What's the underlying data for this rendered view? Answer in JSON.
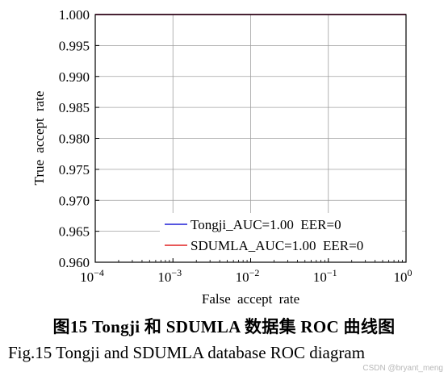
{
  "chart_data": {
    "type": "line",
    "xlabel": "False accept rate",
    "ylabel": "True accept rate",
    "xscale": "log",
    "xlim": [
      0.0001,
      1
    ],
    "ylim": [
      0.96,
      1.0
    ],
    "x_ticks": [
      {
        "base": "10",
        "exp": "−4"
      },
      {
        "base": "10",
        "exp": "−3"
      },
      {
        "base": "10",
        "exp": "−2"
      },
      {
        "base": "10",
        "exp": "−1"
      },
      {
        "base": "10",
        "exp": "0"
      }
    ],
    "y_ticks": [
      "0.960",
      "0.965",
      "0.970",
      "0.975",
      "0.980",
      "0.985",
      "0.990",
      "0.995",
      "1.000"
    ],
    "grid": true,
    "legend_position": "lower-right",
    "series": [
      {
        "name": "Tongji_AUC=1.00  EER=0",
        "color": "#1f1fd6",
        "x": [
          0.0001,
          1
        ],
        "y": [
          1.0,
          1.0
        ]
      },
      {
        "name": "SDUMLA_AUC=1.00  EER=0",
        "color": "#e02020",
        "x": [
          0.0001,
          1
        ],
        "y": [
          1.0,
          1.0
        ]
      }
    ]
  },
  "caption_cn": "图15   Tongji 和 SDUMLA 数据集 ROC 曲线图",
  "caption_en": "Fig.15   Tongji  and  SDUMLA  database  ROC  diagram",
  "watermark": "CSDN @bryant_meng"
}
